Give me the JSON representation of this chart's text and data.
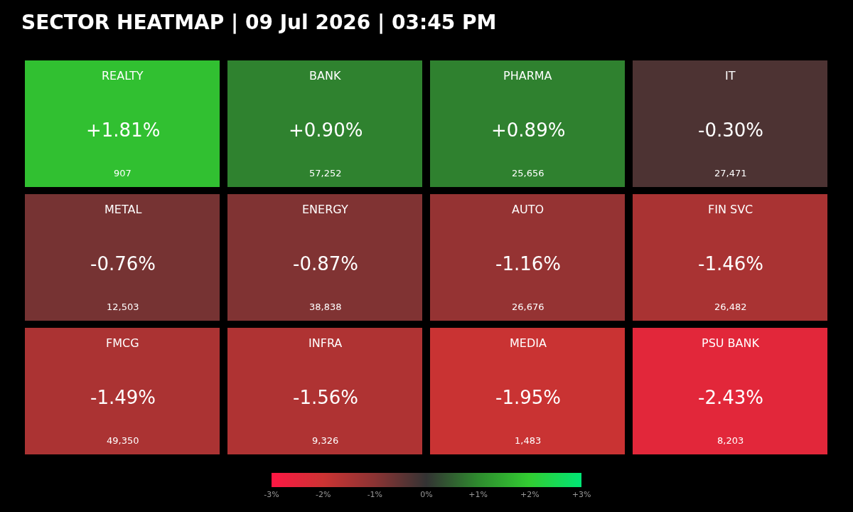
{
  "chart_data": {
    "type": "heatmap",
    "title": "SECTOR HEATMAP | 09 Jul 2026 | 03:45 PM",
    "categories": [
      null,
      null,
      null,
      null
    ],
    "y_categories": [
      null,
      null,
      null
    ],
    "cells": [
      [
        1.81,
        0.9,
        0.89,
        -0.3
      ],
      [
        -0.76,
        -0.87,
        -1.16,
        -1.46
      ],
      [
        -1.49,
        -1.56,
        -1.95,
        -2.43
      ]
    ],
    "cell_labels": [
      [
        "REALTY\n+1.81%\n907",
        "BANK\n+0.90%\n57,252",
        "PHARMA\n+0.89%\n25,656",
        "IT\n-0.30%\n27,471"
      ],
      [
        "METAL\n-0.76%\n12,503",
        "ENERGY\n-0.87%\n38,838",
        "AUTO\n-1.16%\n26,676",
        "FIN SVC\n-1.46%\n26,482"
      ],
      [
        "FMCG\n-1.49%\n49,350",
        "INFRA\n-1.56%\n9,326",
        "MEDIA\n-1.95%\n1,483",
        "PSU BANK\n-2.43%\n8,203"
      ]
    ],
    "clim": [
      -3,
      3
    ],
    "cticks": [
      {
        "value": -3,
        "label": "-3%"
      },
      {
        "value": -2,
        "label": "-2%"
      },
      {
        "value": -1,
        "label": "-1%"
      },
      {
        "value": 0,
        "label": "0%"
      },
      {
        "value": 1,
        "label": "+1%"
      },
      {
        "value": 2,
        "label": "+2%"
      },
      {
        "value": 3,
        "label": "+3%"
      }
    ]
  }
}
